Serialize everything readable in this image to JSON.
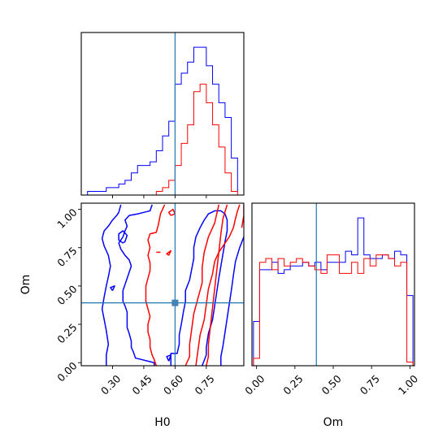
{
  "chart_data": [
    {
      "type": "histogram",
      "panel": "H0 marginal",
      "x": [
        0.15,
        0.18,
        0.21,
        0.24,
        0.27,
        0.3,
        0.33,
        0.36,
        0.39,
        0.42,
        0.45,
        0.48,
        0.51,
        0.54,
        0.57,
        0.6,
        0.63,
        0.66,
        0.69,
        0.72,
        0.75,
        0.78,
        0.81,
        0.84,
        0.87,
        0.9
      ],
      "series": [
        {
          "color": "#0000ff",
          "values": [
            0,
            1,
            1,
            1,
            2,
            2,
            3,
            4,
            6,
            8,
            8,
            9,
            12,
            16,
            20,
            30,
            33,
            36,
            40,
            40,
            35,
            30,
            25,
            21,
            10,
            1
          ]
        },
        {
          "color": "#ff0000",
          "values": [
            0,
            0,
            0,
            0,
            0,
            0,
            0,
            0,
            0,
            0,
            0,
            0,
            1,
            2,
            4,
            8,
            14,
            19,
            28,
            30,
            25,
            19,
            13,
            6,
            1,
            0
          ]
        }
      ],
      "truth": 0.6,
      "xlim": [
        0.15,
        0.93
      ],
      "ylim": [
        0,
        44
      ]
    },
    {
      "type": "contour",
      "panel": "H0 vs Om",
      "xlabel": "H0",
      "ylabel": "Om",
      "xticks": [
        "0.30",
        "0.45",
        "0.60",
        "0.75"
      ],
      "yticks": [
        "0.00",
        "0.25",
        "0.50",
        "0.75",
        "1.00"
      ],
      "xlim": [
        0.15,
        0.93
      ],
      "ylim": [
        -0.02,
        1.04
      ],
      "truth": {
        "x": 0.6,
        "y": 0.39
      },
      "series": [
        {
          "color": "#0000ff",
          "contours": [
            [
              [
                0.27,
                -0.02
              ],
              [
                0.27,
                0.05
              ],
              [
                0.28,
                0.12
              ],
              [
                0.27,
                0.21
              ],
              [
                0.26,
                0.28
              ],
              [
                0.25,
                0.35
              ],
              [
                0.26,
                0.43
              ],
              [
                0.27,
                0.5
              ],
              [
                0.28,
                0.56
              ],
              [
                0.29,
                0.63
              ],
              [
                0.28,
                0.7
              ],
              [
                0.26,
                0.76
              ],
              [
                0.25,
                0.81
              ],
              [
                0.26,
                0.86
              ],
              [
                0.28,
                0.89
              ],
              [
                0.3,
                0.93
              ],
              [
                0.32,
                0.96
              ],
              [
                0.33,
                0.98
              ],
              [
                0.34,
                1.03
              ]
            ],
            [
              [
                0.49,
                1.03
              ],
              [
                0.48,
                0.99
              ],
              [
                0.45,
                0.98
              ],
              [
                0.42,
                0.97
              ],
              [
                0.38,
                0.96
              ],
              [
                0.36,
                0.93
              ],
              [
                0.37,
                0.89
              ],
              [
                0.36,
                0.86
              ],
              [
                0.35,
                0.82
              ],
              [
                0.33,
                0.78
              ],
              [
                0.34,
                0.74
              ],
              [
                0.36,
                0.7
              ],
              [
                0.38,
                0.67
              ],
              [
                0.39,
                0.63
              ],
              [
                0.38,
                0.59
              ],
              [
                0.37,
                0.55
              ],
              [
                0.36,
                0.51
              ],
              [
                0.35,
                0.47
              ],
              [
                0.35,
                0.44
              ],
              [
                0.35,
                0.4
              ],
              [
                0.36,
                0.37
              ],
              [
                0.37,
                0.33
              ],
              [
                0.37,
                0.28
              ],
              [
                0.37,
                0.23
              ],
              [
                0.38,
                0.19
              ],
              [
                0.39,
                0.14
              ],
              [
                0.39,
                0.1
              ],
              [
                0.4,
                0.07
              ],
              [
                0.41,
                0.03
              ],
              [
                0.44,
                0.02
              ],
              [
                0.47,
                0.01
              ],
              [
                0.5,
                0.0
              ],
              [
                0.5,
                -0.02
              ]
            ],
            [
              [
                0.58,
                -0.02
              ],
              [
                0.58,
                0.06
              ],
              [
                0.61,
                0.06
              ],
              [
                0.62,
                0.12
              ],
              [
                0.62,
                0.18
              ],
              [
                0.63,
                0.25
              ],
              [
                0.64,
                0.33
              ],
              [
                0.65,
                0.4
              ],
              [
                0.65,
                0.47
              ],
              [
                0.67,
                0.54
              ],
              [
                0.68,
                0.61
              ],
              [
                0.69,
                0.68
              ],
              [
                0.69,
                0.75
              ],
              [
                0.7,
                0.82
              ],
              [
                0.72,
                0.88
              ],
              [
                0.74,
                0.93
              ],
              [
                0.76,
                0.97
              ],
              [
                0.79,
                0.99
              ],
              [
                0.82,
                0.99
              ],
              [
                0.84,
                0.97
              ],
              [
                0.85,
                0.93
              ],
              [
                0.85,
                0.86
              ],
              [
                0.84,
                0.79
              ],
              [
                0.83,
                0.71
              ],
              [
                0.82,
                0.63
              ],
              [
                0.81,
                0.55
              ],
              [
                0.8,
                0.46
              ],
              [
                0.79,
                0.37
              ],
              [
                0.78,
                0.28
              ],
              [
                0.76,
                0.19
              ],
              [
                0.75,
                0.1
              ],
              [
                0.75,
                0.05
              ],
              [
                0.73,
                -0.02
              ]
            ],
            [
              [
                0.35,
                0.78
              ],
              [
                0.33,
                0.8
              ],
              [
                0.33,
                0.84
              ],
              [
                0.35,
                0.86
              ],
              [
                0.37,
                0.83
              ],
              [
                0.36,
                0.79
              ],
              [
                0.35,
                0.78
              ]
            ],
            [
              [
                0.3,
                0.47
              ],
              [
                0.29,
                0.49
              ],
              [
                0.31,
                0.5
              ],
              [
                0.3,
                0.47
              ]
            ],
            [
              [
                0.57,
                0.01
              ],
              [
                0.56,
                0.04
              ],
              [
                0.58,
                0.05
              ],
              [
                0.57,
                0.01
              ]
            ],
            [
              [
                0.93,
                0.82
              ],
              [
                0.91,
                0.75
              ],
              [
                0.89,
                0.66
              ],
              [
                0.88,
                0.57
              ],
              [
                0.87,
                0.47
              ],
              [
                0.86,
                0.38
              ],
              [
                0.85,
                0.29
              ],
              [
                0.84,
                0.2
              ],
              [
                0.83,
                0.11
              ],
              [
                0.82,
                0.04
              ],
              [
                0.82,
                -0.02
              ]
            ]
          ]
        },
        {
          "color": "#ff0000",
          "contours": [
            [
              [
                0.55,
                1.03
              ],
              [
                0.53,
                0.97
              ],
              [
                0.52,
                0.9
              ],
              [
                0.51,
                0.85
              ],
              [
                0.48,
                0.84
              ],
              [
                0.47,
                0.8
              ],
              [
                0.48,
                0.75
              ],
              [
                0.47,
                0.7
              ],
              [
                0.48,
                0.65
              ],
              [
                0.48,
                0.6
              ],
              [
                0.47,
                0.55
              ],
              [
                0.46,
                0.5
              ],
              [
                0.46,
                0.45
              ],
              [
                0.46,
                0.4
              ],
              [
                0.47,
                0.35
              ],
              [
                0.48,
                0.3
              ],
              [
                0.47,
                0.25
              ],
              [
                0.47,
                0.2
              ],
              [
                0.48,
                0.15
              ],
              [
                0.48,
                0.1
              ],
              [
                0.49,
                0.05
              ],
              [
                0.5,
                0.02
              ],
              [
                0.51,
                -0.02
              ]
            ],
            [
              [
                0.65,
                -0.02
              ],
              [
                0.67,
                0.04
              ],
              [
                0.67,
                0.12
              ],
              [
                0.68,
                0.22
              ],
              [
                0.69,
                0.32
              ],
              [
                0.71,
                0.42
              ],
              [
                0.73,
                0.52
              ],
              [
                0.73,
                0.62
              ],
              [
                0.74,
                0.72
              ],
              [
                0.76,
                0.82
              ],
              [
                0.79,
                0.91
              ],
              [
                0.8,
                0.97
              ],
              [
                0.81,
                1.03
              ]
            ],
            [
              [
                0.85,
                1.03
              ],
              [
                0.83,
                0.94
              ],
              [
                0.82,
                0.84
              ],
              [
                0.81,
                0.72
              ],
              [
                0.8,
                0.6
              ],
              [
                0.79,
                0.48
              ],
              [
                0.78,
                0.36
              ],
              [
                0.77,
                0.24
              ],
              [
                0.76,
                0.12
              ],
              [
                0.76,
                0.04
              ],
              [
                0.75,
                -0.02
              ]
            ],
            [
              [
                0.7,
                -0.02
              ],
              [
                0.71,
                0.08
              ],
              [
                0.72,
                0.18
              ],
              [
                0.74,
                0.28
              ],
              [
                0.75,
                0.38
              ],
              [
                0.76,
                0.48
              ],
              [
                0.78,
                0.58
              ],
              [
                0.79,
                0.66
              ],
              [
                0.81,
                0.72
              ],
              [
                0.84,
                0.78
              ],
              [
                0.86,
                0.82
              ],
              [
                0.88,
                0.88
              ],
              [
                0.89,
                0.94
              ],
              [
                0.9,
                0.99
              ],
              [
                0.91,
                1.03
              ]
            ],
            [
              [
                0.93,
                1.03
              ],
              [
                0.93,
                0.96
              ],
              [
                0.92,
                0.88
              ]
            ],
            [
              [
                0.58,
                0.96
              ],
              [
                0.57,
                0.98
              ],
              [
                0.59,
                1.0
              ],
              [
                0.6,
                0.97
              ],
              [
                0.58,
                0.96
              ]
            ],
            [
              [
                0.57,
                0.7
              ],
              [
                0.56,
                0.71
              ],
              [
                0.58,
                0.73
              ],
              [
                0.57,
                0.7
              ]
            ],
            [
              [
                0.51,
                0.72
              ],
              [
                0.53,
                0.72
              ]
            ]
          ]
        }
      ]
    },
    {
      "type": "histogram",
      "panel": "Om marginal",
      "xlabel": "Om",
      "xticks": [
        "0.00",
        "0.25",
        "0.50",
        "0.75",
        "1.00"
      ],
      "x": [
        -0.02,
        0.02,
        0.06,
        0.1,
        0.14,
        0.18,
        0.22,
        0.26,
        0.3,
        0.34,
        0.38,
        0.42,
        0.46,
        0.5,
        0.54,
        0.58,
        0.62,
        0.66,
        0.7,
        0.74,
        0.78,
        0.82,
        0.86,
        0.9,
        0.94,
        0.98,
        1.02
      ],
      "series": [
        {
          "color": "#0000ff",
          "values": [
            12,
            26,
            26,
            28,
            25,
            26,
            27,
            27,
            28,
            27,
            28,
            26,
            28,
            28,
            28,
            31,
            30,
            40,
            30,
            29,
            29,
            30,
            29,
            31,
            30,
            19
          ]
        },
        {
          "color": "#ff0000",
          "values": [
            2,
            28,
            29,
            26,
            29,
            27,
            28,
            29,
            28,
            27,
            26,
            25,
            30,
            30,
            25,
            25,
            28,
            25,
            29,
            27,
            30,
            30,
            29,
            27,
            28,
            1
          ]
        }
      ],
      "truth": 0.39,
      "xlim": [
        -0.03,
        1.03
      ],
      "ylim": [
        0,
        44
      ]
    }
  ],
  "legend": "none",
  "grid": false,
  "colors": {
    "blue": "#0000ff",
    "red": "#ff0000",
    "truth": "#1f77b4",
    "axes": "#000000"
  }
}
